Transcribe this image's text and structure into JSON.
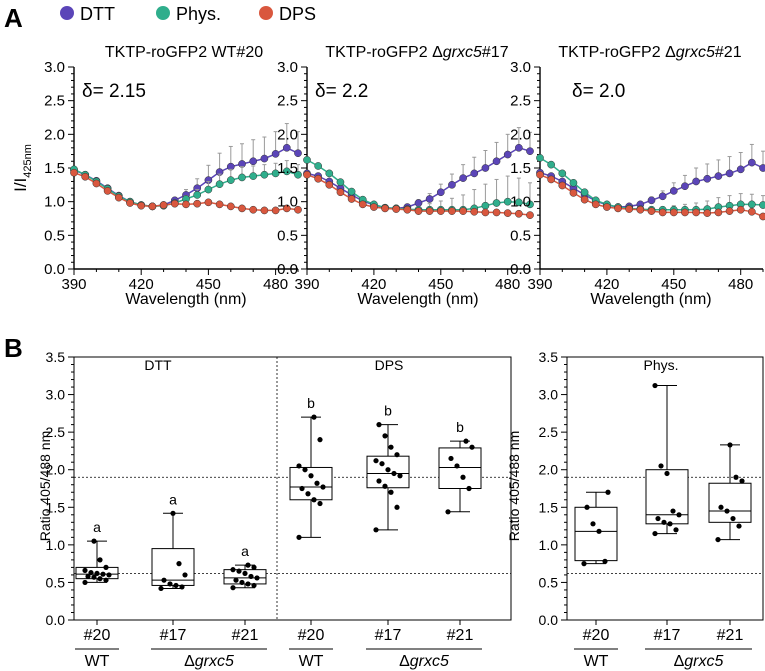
{
  "panel_labels": {
    "a": "A",
    "b": "B"
  },
  "legend": [
    {
      "label": "DTT",
      "color": "#5b45b8"
    },
    {
      "label": "Phys.",
      "color": "#2fae8c"
    },
    {
      "label": "DPS",
      "color": "#d9573e"
    }
  ],
  "error_bar_color": "#9a9a9a",
  "chart_data": [
    {
      "type": "line",
      "title": "TKTP-roGFP2 WT#20",
      "annotation": "δ= 2.15",
      "xlabel": "Wavelength (nm)",
      "ylabel": "I/I",
      "ylabel_sub": "425nm",
      "xlim": [
        390,
        490
      ],
      "ylim": [
        0.0,
        3.0
      ],
      "xticks": [
        390,
        420,
        450,
        480
      ],
      "yticks": [
        "0.0",
        "0.5",
        "1.0",
        "1.5",
        "2.0",
        "2.5",
        "3.0"
      ],
      "x": [
        390,
        395,
        400,
        405,
        410,
        415,
        420,
        425,
        430,
        435,
        440,
        445,
        450,
        455,
        460,
        465,
        470,
        475,
        480,
        485,
        490
      ],
      "series": [
        {
          "name": "DTT",
          "color": "#5b45b8",
          "values": [
            1.47,
            1.4,
            1.31,
            1.2,
            1.09,
            1.0,
            0.95,
            0.93,
            0.95,
            1.02,
            1.1,
            1.2,
            1.32,
            1.44,
            1.52,
            1.56,
            1.6,
            1.64,
            1.71,
            1.8,
            1.72
          ],
          "err": [
            0.03,
            0.03,
            0.03,
            0.03,
            0.03,
            0.02,
            0.02,
            0.02,
            0.02,
            0.04,
            0.08,
            0.14,
            0.22,
            0.28,
            0.3,
            0.3,
            0.32,
            0.32,
            0.33,
            0.36,
            0.32
          ]
        },
        {
          "name": "Phys.",
          "color": "#2fae8c",
          "values": [
            1.48,
            1.4,
            1.3,
            1.19,
            1.08,
            1.0,
            0.95,
            0.93,
            0.94,
            0.98,
            1.04,
            1.1,
            1.18,
            1.26,
            1.32,
            1.36,
            1.38,
            1.4,
            1.42,
            1.45,
            1.4
          ],
          "err": [
            0.03,
            0.03,
            0.03,
            0.03,
            0.02,
            0.02,
            0.02,
            0.02,
            0.02,
            0.03,
            0.05,
            0.08,
            0.12,
            0.15,
            0.16,
            0.16,
            0.15,
            0.15,
            0.15,
            0.16,
            0.15
          ]
        },
        {
          "name": "DPS",
          "color": "#d9573e",
          "values": [
            1.43,
            1.37,
            1.27,
            1.16,
            1.06,
            0.98,
            0.94,
            0.93,
            0.95,
            0.97,
            0.96,
            0.97,
            0.99,
            0.96,
            0.93,
            0.9,
            0.88,
            0.87,
            0.87,
            0.9,
            0.88
          ],
          "err": [
            0.02,
            0.02,
            0.02,
            0.02,
            0.02,
            0.02,
            0.02,
            0.02,
            0.02,
            0.02,
            0.02,
            0.02,
            0.02,
            0.02,
            0.02,
            0.02,
            0.02,
            0.02,
            0.02,
            0.02,
            0.02
          ]
        }
      ]
    },
    {
      "type": "line",
      "title": "TKTP-roGFP2 Δgrxc5#17",
      "title_prefix": "TKTP-roGFP2 Δ",
      "title_italic": "grxc5",
      "title_suffix": "#17",
      "annotation": "δ= 2.2",
      "xlabel": "Wavelength (nm)",
      "xlim": [
        390,
        490
      ],
      "ylim": [
        0.0,
        3.0
      ],
      "xticks": [
        390,
        420,
        450,
        480
      ],
      "yticks": [
        "0.0",
        "0.5",
        "1.0",
        "1.5",
        "2.0",
        "2.5",
        "3.0"
      ],
      "x": [
        390,
        395,
        400,
        405,
        410,
        415,
        420,
        425,
        430,
        435,
        440,
        445,
        450,
        455,
        460,
        465,
        470,
        475,
        480,
        485,
        490
      ],
      "series": [
        {
          "name": "DTT",
          "color": "#5b45b8",
          "values": [
            1.42,
            1.38,
            1.3,
            1.2,
            1.1,
            1.01,
            0.95,
            0.91,
            0.9,
            0.92,
            0.98,
            1.04,
            1.14,
            1.25,
            1.35,
            1.42,
            1.5,
            1.6,
            1.7,
            1.8,
            1.75
          ],
          "err": [
            0.03,
            0.03,
            0.03,
            0.03,
            0.02,
            0.02,
            0.02,
            0.02,
            0.02,
            0.03,
            0.05,
            0.08,
            0.12,
            0.16,
            0.2,
            0.24,
            0.26,
            0.28,
            0.3,
            0.3,
            0.28
          ]
        },
        {
          "name": "Phys.",
          "color": "#2fae8c",
          "values": [
            1.62,
            1.53,
            1.42,
            1.29,
            1.15,
            1.03,
            0.96,
            0.91,
            0.9,
            0.89,
            0.88,
            0.88,
            0.88,
            0.88,
            0.88,
            0.9,
            0.94,
            0.98,
            1.0,
            0.99,
            0.96
          ],
          "err": [
            0.04,
            0.04,
            0.04,
            0.03,
            0.03,
            0.03,
            0.02,
            0.02,
            0.02,
            0.03,
            0.05,
            0.09,
            0.13,
            0.17,
            0.22,
            0.28,
            0.32,
            0.35,
            0.38,
            0.36,
            0.32
          ]
        },
        {
          "name": "DPS",
          "color": "#d9573e",
          "values": [
            1.4,
            1.34,
            1.25,
            1.14,
            1.04,
            0.96,
            0.92,
            0.9,
            0.89,
            0.88,
            0.86,
            0.86,
            0.86,
            0.86,
            0.86,
            0.85,
            0.84,
            0.84,
            0.83,
            0.82,
            0.8
          ],
          "err": [
            0.02,
            0.02,
            0.02,
            0.02,
            0.02,
            0.02,
            0.02,
            0.02,
            0.02,
            0.02,
            0.02,
            0.02,
            0.02,
            0.02,
            0.02,
            0.02,
            0.02,
            0.02,
            0.02,
            0.02,
            0.02
          ]
        }
      ]
    },
    {
      "type": "line",
      "title": "TKTP-roGFP2 Δgrxc5#21",
      "title_prefix": "TKTP-roGFP2 Δ",
      "title_italic": "grxc5",
      "title_suffix": "#21",
      "annotation": "δ= 2.0",
      "xlabel": "Wavelength (nm)",
      "xlim": [
        390,
        490
      ],
      "ylim": [
        0.0,
        3.0
      ],
      "xticks": [
        390,
        420,
        450,
        480
      ],
      "yticks": [
        "0.0",
        "0.5",
        "1.0",
        "1.5",
        "2.0",
        "2.5",
        "3.0"
      ],
      "x": [
        390,
        395,
        400,
        405,
        410,
        415,
        420,
        425,
        430,
        435,
        440,
        445,
        450,
        455,
        460,
        465,
        470,
        475,
        480,
        485,
        490
      ],
      "series": [
        {
          "name": "DTT",
          "color": "#5b45b8",
          "values": [
            1.43,
            1.38,
            1.3,
            1.2,
            1.1,
            1.01,
            0.95,
            0.92,
            0.93,
            0.96,
            1.02,
            1.08,
            1.16,
            1.23,
            1.3,
            1.34,
            1.38,
            1.42,
            1.48,
            1.58,
            1.5
          ],
          "err": [
            0.03,
            0.03,
            0.03,
            0.03,
            0.02,
            0.02,
            0.02,
            0.02,
            0.02,
            0.03,
            0.05,
            0.08,
            0.12,
            0.16,
            0.2,
            0.22,
            0.24,
            0.25,
            0.25,
            0.27,
            0.25
          ]
        },
        {
          "name": "Phys.",
          "color": "#2fae8c",
          "values": [
            1.65,
            1.55,
            1.42,
            1.28,
            1.14,
            1.02,
            0.96,
            0.92,
            0.9,
            0.89,
            0.88,
            0.88,
            0.88,
            0.88,
            0.88,
            0.89,
            0.92,
            0.94,
            0.96,
            0.96,
            0.95
          ],
          "err": [
            0.04,
            0.04,
            0.04,
            0.03,
            0.03,
            0.03,
            0.02,
            0.02,
            0.02,
            0.02,
            0.03,
            0.04,
            0.06,
            0.08,
            0.1,
            0.12,
            0.14,
            0.15,
            0.16,
            0.15,
            0.14
          ]
        },
        {
          "name": "DPS",
          "color": "#d9573e",
          "values": [
            1.4,
            1.33,
            1.24,
            1.13,
            1.03,
            0.96,
            0.92,
            0.9,
            0.89,
            0.88,
            0.86,
            0.84,
            0.84,
            0.84,
            0.84,
            0.83,
            0.84,
            0.86,
            0.88,
            0.85,
            0.78
          ],
          "err": [
            0.02,
            0.02,
            0.02,
            0.02,
            0.02,
            0.02,
            0.02,
            0.02,
            0.02,
            0.02,
            0.02,
            0.02,
            0.02,
            0.02,
            0.02,
            0.02,
            0.02,
            0.02,
            0.02,
            0.02,
            0.02
          ]
        }
      ]
    },
    {
      "type": "box",
      "ylabel": "Ratio 405/488 nm",
      "ylim": [
        0.0,
        3.5
      ],
      "yticks": [
        "0.0",
        "0.5",
        "1.0",
        "1.5",
        "2.0",
        "2.5",
        "3.0",
        "3.5"
      ],
      "reference_lines": [
        1.9,
        0.62
      ],
      "group_titles": [
        {
          "label": "DTT",
          "between": [
            0,
            2
          ]
        },
        {
          "label": "DPS",
          "between": [
            3,
            5
          ]
        }
      ],
      "group_divider_after": 2,
      "categories": [
        "#20",
        "#17",
        "#21",
        "#20",
        "#17",
        "#21"
      ],
      "genotype_labels": [
        {
          "text": "WT",
          "italic": false,
          "span": [
            0,
            0
          ]
        },
        {
          "text": "Δgrxc5",
          "prefix": "Δ",
          "italic_part": "grxc5",
          "span": [
            1,
            2
          ]
        },
        {
          "text": "WT",
          "italic": false,
          "span": [
            3,
            3
          ]
        },
        {
          "text": "Δgrxc5",
          "prefix": "Δ",
          "italic_part": "grxc5",
          "span": [
            4,
            5
          ]
        }
      ],
      "boxes": [
        {
          "group": "DTT",
          "category": "#20",
          "min": 0.5,
          "q1": 0.55,
          "median": 0.61,
          "q3": 0.7,
          "max": 1.05,
          "letter": "a",
          "points": [
            0.5,
            0.53,
            0.55,
            0.57,
            0.58,
            0.6,
            0.61,
            0.62,
            0.63,
            0.66,
            0.7,
            0.8,
            1.05
          ]
        },
        {
          "group": "DTT",
          "category": "#17",
          "min": 0.42,
          "q1": 0.46,
          "median": 0.53,
          "q3": 0.95,
          "max": 1.42,
          "letter": "a",
          "points": [
            0.42,
            0.44,
            0.46,
            0.48,
            0.53,
            0.6,
            0.75,
            1.42
          ]
        },
        {
          "group": "DTT",
          "category": "#21",
          "min": 0.43,
          "q1": 0.48,
          "median": 0.56,
          "q3": 0.67,
          "max": 0.73,
          "letter": "a",
          "points": [
            0.43,
            0.46,
            0.48,
            0.5,
            0.53,
            0.56,
            0.58,
            0.62,
            0.65,
            0.67,
            0.7,
            0.73
          ]
        },
        {
          "group": "DPS",
          "category": "#20",
          "min": 1.1,
          "q1": 1.6,
          "median": 1.77,
          "q3": 2.03,
          "max": 2.7,
          "letter": "b",
          "points": [
            1.1,
            1.55,
            1.6,
            1.68,
            1.75,
            1.77,
            1.82,
            1.92,
            2.0,
            2.05,
            2.4,
            2.7
          ]
        },
        {
          "group": "DPS",
          "category": "#17",
          "min": 1.2,
          "q1": 1.76,
          "median": 1.95,
          "q3": 2.18,
          "max": 2.6,
          "letter": "b",
          "points": [
            1.2,
            1.5,
            1.7,
            1.78,
            1.85,
            1.92,
            1.95,
            2.0,
            2.08,
            2.12,
            2.2,
            2.3,
            2.45,
            2.6
          ]
        },
        {
          "group": "DPS",
          "category": "#21",
          "min": 1.44,
          "q1": 1.75,
          "median": 2.03,
          "q3": 2.29,
          "max": 2.38,
          "letter": "b",
          "points": [
            1.44,
            1.75,
            1.9,
            2.05,
            2.15,
            2.3,
            2.38
          ]
        }
      ]
    },
    {
      "type": "box",
      "ylabel": "Ratio 405/488 nm",
      "title": "Phys.",
      "ylim": [
        0.0,
        3.5
      ],
      "yticks": [
        "0.0",
        "0.5",
        "1.0",
        "1.5",
        "2.0",
        "2.5",
        "3.0",
        "3.5"
      ],
      "reference_lines": [
        1.9,
        0.62
      ],
      "categories": [
        "#20",
        "#17",
        "#21"
      ],
      "genotype_labels": [
        {
          "text": "WT",
          "italic": false,
          "span": [
            0,
            0
          ]
        },
        {
          "text": "Δgrxc5",
          "prefix": "Δ",
          "italic_part": "grxc5",
          "span": [
            1,
            2
          ]
        }
      ],
      "boxes": [
        {
          "category": "#20",
          "min": 0.75,
          "q1": 0.79,
          "median": 1.18,
          "q3": 1.5,
          "max": 1.7,
          "points": [
            0.75,
            0.78,
            1.18,
            1.28,
            1.5,
            1.7
          ]
        },
        {
          "category": "#17",
          "min": 1.15,
          "q1": 1.28,
          "median": 1.4,
          "q3": 2.0,
          "max": 3.12,
          "points": [
            1.15,
            1.2,
            1.28,
            1.3,
            1.35,
            1.4,
            1.45,
            1.95,
            2.05,
            3.12
          ]
        },
        {
          "category": "#21",
          "min": 1.07,
          "q1": 1.3,
          "median": 1.45,
          "q3": 1.82,
          "max": 2.33,
          "points": [
            1.07,
            1.25,
            1.35,
            1.45,
            1.5,
            1.85,
            1.9,
            2.33
          ]
        }
      ]
    }
  ]
}
